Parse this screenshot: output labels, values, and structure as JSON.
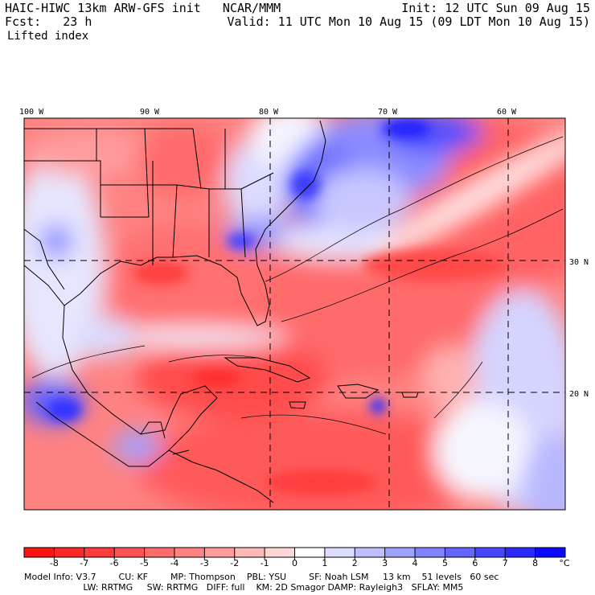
{
  "header": {
    "model_title": "HAIC-HIWC 13km ARW-GFS init   NCAR/MMM",
    "init_time": "Init: 12 UTC Sun 09 Aug 15",
    "forecast_label": "Fcst:   23 h",
    "valid_time": "Valid: 11 UTC Mon 10 Aug 15 (09 LDT Mon 10 Aug 15)",
    "field_name": "Lifted index"
  },
  "map": {
    "longitude_labels": [
      "100 W",
      "90 W",
      "80 W",
      "70 W",
      "60 W"
    ],
    "latitude_labels": [
      "30 N",
      "20 N"
    ]
  },
  "colorbar": {
    "tick_labels": [
      "-8",
      "-7",
      "-6",
      "-5",
      "-4",
      "-3",
      "-2",
      "-1",
      "0",
      "1",
      "2",
      "3",
      "4",
      "5",
      "6",
      "7",
      "8"
    ],
    "unit": "°C",
    "colors": [
      "#ff1414",
      "#ff2626",
      "#ff3c3c",
      "#ff5252",
      "#ff6a6a",
      "#ff8282",
      "#ff9c9c",
      "#ffb8b8",
      "#ffd6d6",
      "#ffffff",
      "#dcdcff",
      "#bebeff",
      "#a0a0ff",
      "#8282ff",
      "#6464ff",
      "#4646ff",
      "#2828ff",
      "#0a0aff"
    ]
  },
  "footer": {
    "line1": "Model Info: V3.7        CU: KF        MP: Thompson    PBL: YSU        SF: Noah LSM     13 km    51 levels   60 sec",
    "line2": "                     LW: RRTMG     SW: RRTMG   DIFF: full    KM: 2D Smagor DAMP: Rayleigh3   SFLAY: MM5"
  }
}
